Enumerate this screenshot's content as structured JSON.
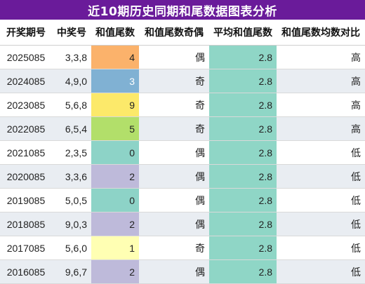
{
  "title": "近10期历史同期和尾数据图表分析",
  "headers": [
    "开奖期号",
    "中奖号",
    "和值尾数",
    "和值尾数奇偶",
    "平均和值尾数",
    "和值尾数均数对比"
  ],
  "rows": [
    {
      "period": "2025085",
      "nums": "3,3,8",
      "sum_tail": "4",
      "parity": "偶",
      "avg": "2.8",
      "cmp": "高",
      "color": "#fbb26b"
    },
    {
      "period": "2024085",
      "nums": "4,9,0",
      "sum_tail": "3",
      "parity": "奇",
      "avg": "2.8",
      "cmp": "高",
      "color": "#80b1d3"
    },
    {
      "period": "2023085",
      "nums": "5,6,8",
      "sum_tail": "9",
      "parity": "奇",
      "avg": "2.8",
      "cmp": "高",
      "color": "#fce96a"
    },
    {
      "period": "2022085",
      "nums": "6,5,4",
      "sum_tail": "5",
      "parity": "奇",
      "avg": "2.8",
      "cmp": "高",
      "color": "#b2df6a"
    },
    {
      "period": "2021085",
      "nums": "2,3,5",
      "sum_tail": "0",
      "parity": "偶",
      "avg": "2.8",
      "cmp": "低",
      "color": "#8dd3c7"
    },
    {
      "period": "2020085",
      "nums": "3,3,6",
      "sum_tail": "2",
      "parity": "偶",
      "avg": "2.8",
      "cmp": "低",
      "color": "#bebada"
    },
    {
      "period": "2019085",
      "nums": "5,0,5",
      "sum_tail": "0",
      "parity": "偶",
      "avg": "2.8",
      "cmp": "低",
      "color": "#8dd3c7"
    },
    {
      "period": "2018085",
      "nums": "9,0,3",
      "sum_tail": "2",
      "parity": "偶",
      "avg": "2.8",
      "cmp": "低",
      "color": "#bebada"
    },
    {
      "period": "2017085",
      "nums": "5,6,0",
      "sum_tail": "1",
      "parity": "奇",
      "avg": "2.8",
      "cmp": "低",
      "color": "#ffffb3"
    },
    {
      "period": "2016085",
      "nums": "9,6,7",
      "sum_tail": "2",
      "parity": "偶",
      "avg": "2.8",
      "cmp": "低",
      "color": "#bebada"
    }
  ]
}
